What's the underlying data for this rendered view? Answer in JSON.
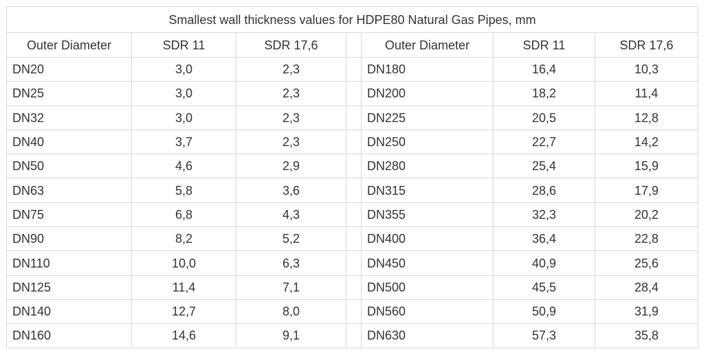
{
  "table": {
    "title": "Smallest wall thickness values for HDPE80 Natural Gas Pipes, mm",
    "headers": [
      "Outer Diameter",
      "SDR 11",
      "SDR 17,6"
    ],
    "left": [
      [
        "DN20",
        "3,0",
        "2,3"
      ],
      [
        "DN25",
        "3,0",
        "2,3"
      ],
      [
        "DN32",
        "3,0",
        "2,3"
      ],
      [
        "DN40",
        "3,7",
        "2,3"
      ],
      [
        "DN50",
        "4,6",
        "2,9"
      ],
      [
        "DN63",
        "5,8",
        "3,6"
      ],
      [
        "DN75",
        "6,8",
        "4,3"
      ],
      [
        "DN90",
        "8,2",
        "5,2"
      ],
      [
        "DN110",
        "10,0",
        "6,3"
      ],
      [
        "DN125",
        "11,4",
        "7,1"
      ],
      [
        "DN140",
        "12,7",
        "8,0"
      ],
      [
        "DN160",
        "14,6",
        "9,1"
      ]
    ],
    "right": [
      [
        "DN180",
        "16,4",
        "10,3"
      ],
      [
        "DN200",
        "18,2",
        "11,4"
      ],
      [
        "DN225",
        "20,5",
        "12,8"
      ],
      [
        "DN250",
        "22,7",
        "14,2"
      ],
      [
        "DN280",
        "25,4",
        "15,9"
      ],
      [
        "DN315",
        "28,6",
        "17,9"
      ],
      [
        "DN355",
        "32,3",
        "20,2"
      ],
      [
        "DN400",
        "36,4",
        "22,8"
      ],
      [
        "DN450",
        "40,9",
        "25,6"
      ],
      [
        "DN500",
        "45,5",
        "28,4"
      ],
      [
        "DN560",
        "50,9",
        "31,9"
      ],
      [
        "DN630",
        "57,3",
        "35,8"
      ]
    ]
  }
}
